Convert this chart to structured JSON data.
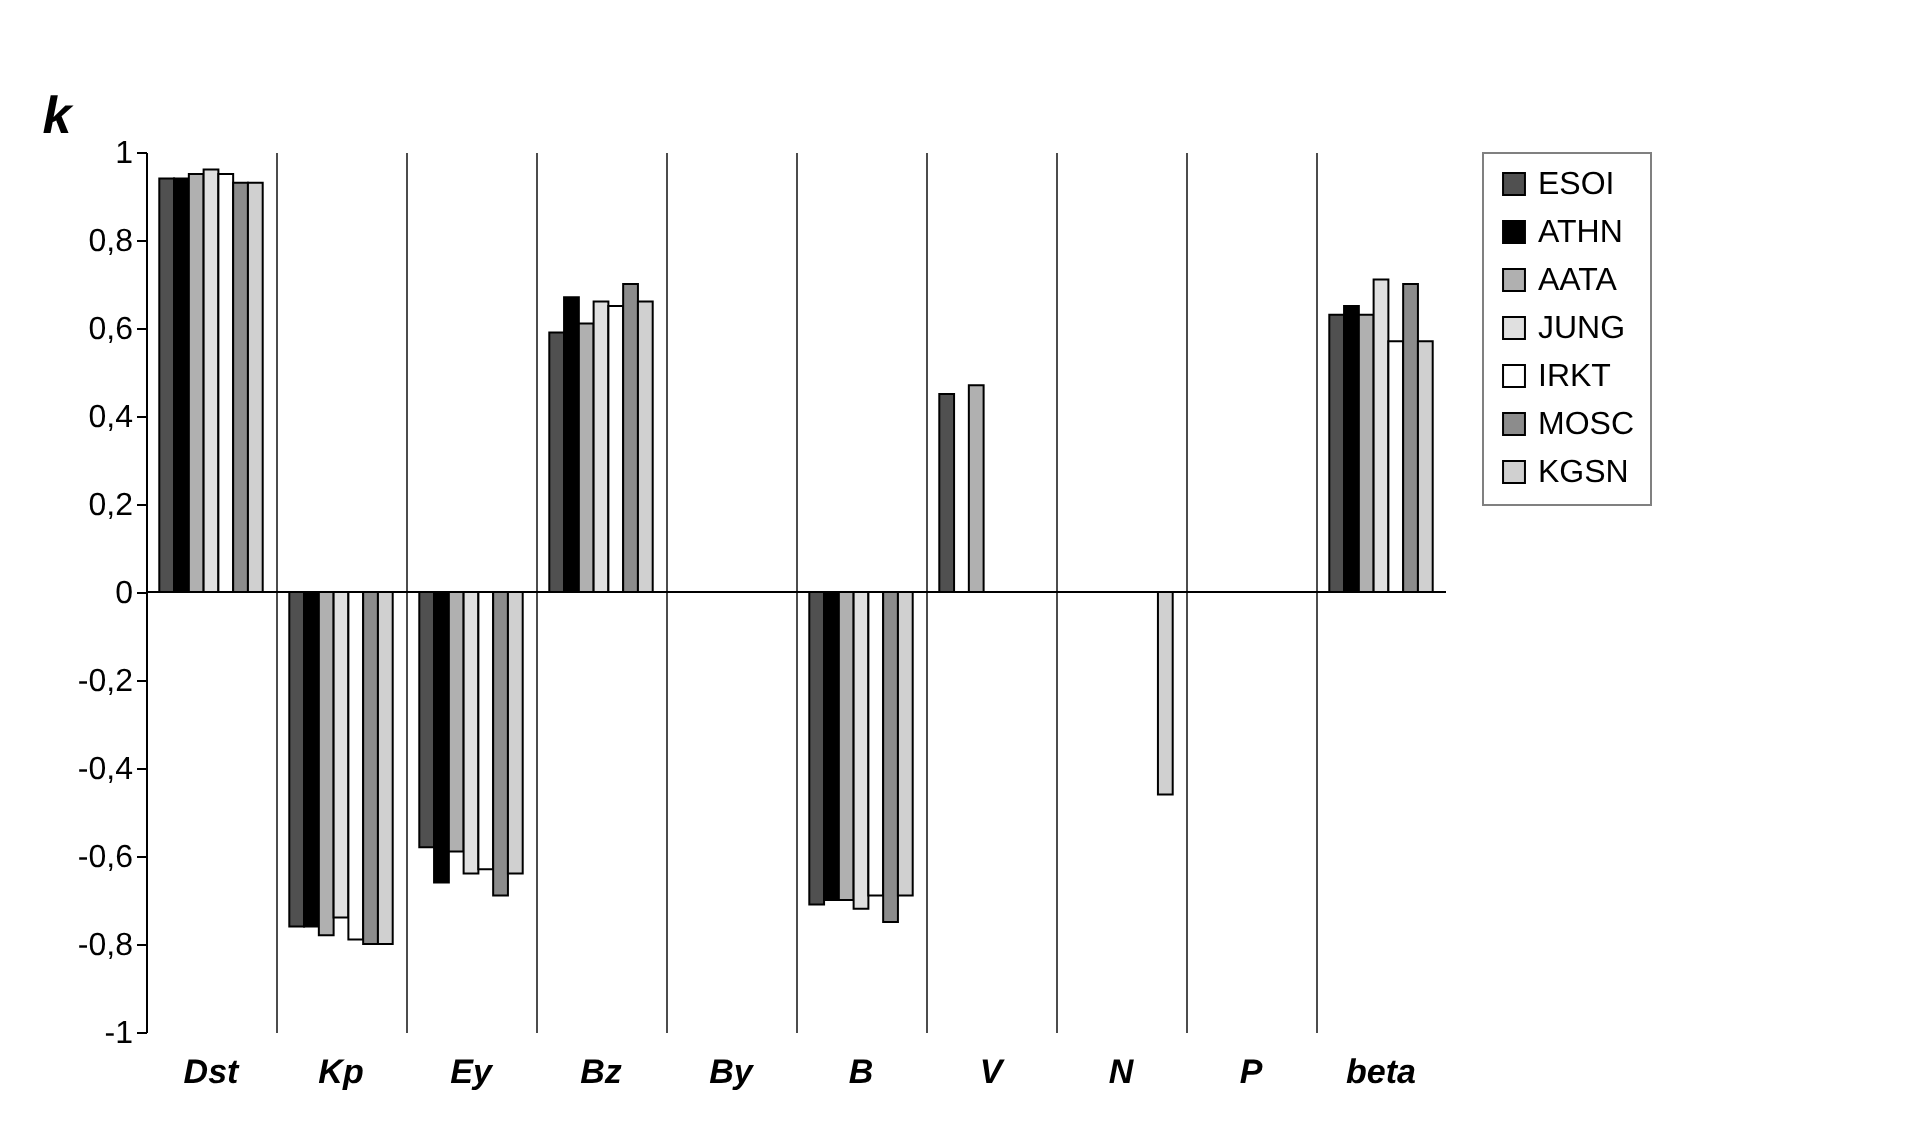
{
  "chart_data": {
    "type": "bar",
    "ylabel": "k",
    "categories": [
      "Dst",
      "Kp",
      "Ey",
      "Bz",
      "By",
      "B",
      "V",
      "N",
      "P",
      "beta"
    ],
    "series": [
      {
        "name": "ESOI",
        "color": "#505050",
        "values": [
          0.94,
          -0.76,
          -0.58,
          0.59,
          null,
          -0.71,
          0.45,
          null,
          null,
          0.63
        ]
      },
      {
        "name": "ATHN",
        "color": "#000000",
        "values": [
          0.94,
          -0.76,
          -0.66,
          0.67,
          null,
          -0.7,
          null,
          null,
          null,
          0.65
        ]
      },
      {
        "name": "AATA",
        "color": "#b0b0b0",
        "values": [
          0.95,
          -0.78,
          -0.59,
          0.61,
          null,
          -0.7,
          0.47,
          null,
          null,
          0.63
        ]
      },
      {
        "name": "JUNG",
        "color": "#e0e0e0",
        "values": [
          0.96,
          -0.74,
          -0.64,
          0.66,
          null,
          -0.72,
          null,
          null,
          null,
          0.71
        ]
      },
      {
        "name": "IRKT",
        "color": "#ffffff",
        "values": [
          0.95,
          -0.79,
          -0.63,
          0.65,
          null,
          -0.69,
          null,
          null,
          null,
          0.57
        ]
      },
      {
        "name": "MOSC",
        "color": "#8c8c8c",
        "values": [
          0.93,
          -0.8,
          -0.69,
          0.7,
          null,
          -0.75,
          null,
          null,
          null,
          0.7
        ]
      },
      {
        "name": "KGSN",
        "color": "#d0d0d0",
        "values": [
          0.93,
          -0.8,
          -0.64,
          0.66,
          null,
          -0.69,
          null,
          -0.46,
          null,
          0.57
        ]
      }
    ],
    "ylim": [
      -1,
      1
    ],
    "yticks": [
      -1,
      {
        "value": -0.8,
        "label": "-0,8"
      },
      {
        "value": -0.6,
        "label": "-0,6"
      },
      {
        "value": -0.4,
        "label": "-0,4"
      },
      {
        "value": -0.2,
        "label": "-0,2"
      },
      0,
      {
        "value": 0.2,
        "label": "0,2"
      },
      {
        "value": 0.4,
        "label": "0,4"
      },
      {
        "value": 0.6,
        "label": "0,6"
      },
      {
        "value": 0.8,
        "label": "0,8"
      },
      1
    ],
    "grid": "x",
    "legend": "right"
  }
}
